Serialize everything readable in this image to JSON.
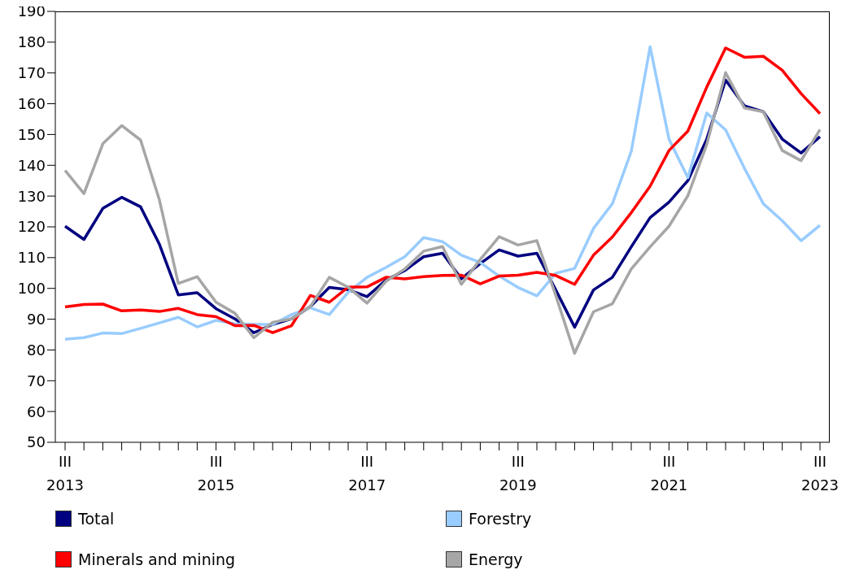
{
  "chart_data": {
    "type": "line",
    "categories": [
      "III\n2013",
      null,
      null,
      null,
      null,
      null,
      null,
      null,
      "III\n2015",
      null,
      null,
      null,
      null,
      null,
      null,
      null,
      "III\n2017",
      null,
      null,
      null,
      null,
      null,
      null,
      null,
      "III\n2019",
      null,
      null,
      null,
      null,
      null,
      null,
      null,
      "III\n2021",
      null,
      null,
      null,
      null,
      null,
      null,
      null,
      "III\n2023"
    ],
    "series": [
      {
        "name": "Total",
        "color": "#000080",
        "values": [
          120.2,
          115.9,
          126,
          129.6,
          126.5,
          114.3,
          97.9,
          98.6,
          93.4,
          90.1,
          85.6,
          88.3,
          90.1,
          94.1,
          100.3,
          99.6,
          97.3,
          102.7,
          105.8,
          110.3,
          111.4,
          103.1,
          108.1,
          112.5,
          110.5,
          111.4,
          99.5,
          87.4,
          99.5,
          103.6,
          113.5,
          123,
          128,
          135,
          148.5,
          167.7,
          159.3,
          157.4,
          148.5,
          144,
          149.3
        ]
      },
      {
        "name": "Forestry",
        "color": "#99ccff",
        "values": [
          83.5,
          84,
          85.5,
          85.3,
          87,
          88.8,
          90.6,
          87.5,
          89.6,
          88.5,
          88.3,
          88.3,
          91.5,
          93.7,
          91.5,
          98.7,
          103.6,
          106.8,
          110.3,
          116.5,
          115.2,
          110.8,
          108.4,
          104,
          100.3,
          97.6,
          104.9,
          106.5,
          119.5,
          127.5,
          144.5,
          178.5,
          148.5,
          136,
          157,
          151.5,
          139,
          127.5,
          122,
          115.5,
          120.5
        ]
      },
      {
        "name": "Minerals and mining",
        "color": "#ff0000",
        "values": [
          94,
          94.8,
          94.9,
          92.7,
          93,
          92.5,
          93.5,
          91.5,
          90.8,
          87.9,
          88,
          85.6,
          87.9,
          97.7,
          95.5,
          100.4,
          100.5,
          103.6,
          103.1,
          103.8,
          104.2,
          104.3,
          101.5,
          104,
          104.3,
          105.2,
          104.2,
          101.3,
          110.8,
          116.7,
          124.6,
          133.2,
          144.8,
          151.1,
          165.4,
          178.1,
          175.1,
          175.4,
          170.9,
          163.3,
          156.8
        ]
      },
      {
        "name": "Energy",
        "color": "#a6a6a6",
        "values": [
          138.3,
          130.8,
          147,
          152.9,
          148.2,
          128.7,
          101.6,
          103.8,
          95.5,
          91.9,
          84,
          89,
          90.1,
          94.1,
          103.6,
          100.4,
          95.2,
          102.3,
          106.3,
          112.1,
          113.6,
          101.3,
          109.4,
          116.8,
          114.1,
          115.5,
          97.7,
          78.9,
          92.4,
          95,
          106.3,
          113.5,
          120.2,
          130.1,
          146.7,
          170.1,
          158.6,
          157.4,
          144.8,
          141.5,
          151.6
        ]
      }
    ],
    "ylim": [
      50,
      190
    ],
    "yticks": [
      50,
      60,
      70,
      80,
      90,
      100,
      110,
      120,
      130,
      140,
      150,
      160,
      170,
      180,
      190
    ],
    "grid": false,
    "legend": "bottom",
    "marker": "none",
    "line_style": "solid"
  }
}
